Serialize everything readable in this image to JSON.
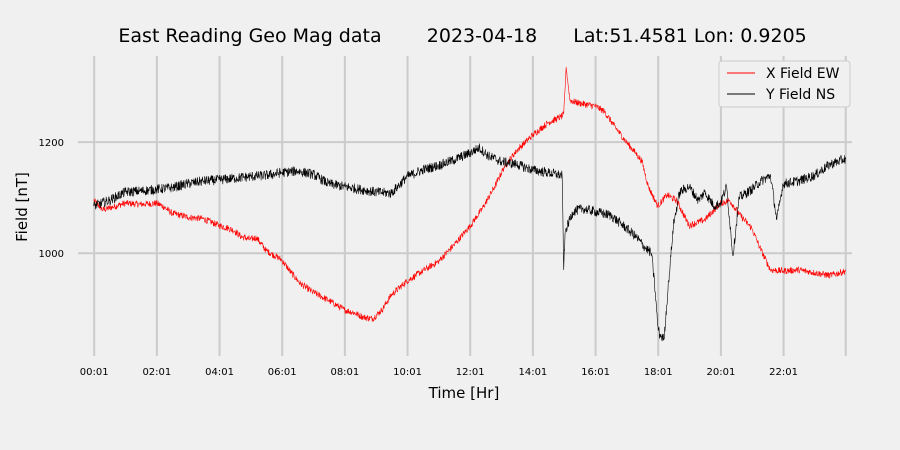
{
  "chart_data": {
    "type": "line",
    "title_parts": {
      "station": "East Reading Geo Mag data",
      "date": "2023-04-18",
      "location": "Lat:51.4581  Lon: 0.9205"
    },
    "xlabel": "Time  [Hr]",
    "ylabel": "Field  [nT]",
    "xlim": [
      -0.5,
      24.2
    ],
    "ylim": [
      815,
      1355
    ],
    "xticks": [
      {
        "value": 0.0167,
        "label": "00:01"
      },
      {
        "value": 2.0167,
        "label": "02:01"
      },
      {
        "value": 4.0167,
        "label": "04:01"
      },
      {
        "value": 6.0167,
        "label": "06:01"
      },
      {
        "value": 8.0167,
        "label": "08:01"
      },
      {
        "value": 10.0167,
        "label": "10:01"
      },
      {
        "value": 12.0167,
        "label": "12:01"
      },
      {
        "value": 14.0167,
        "label": "14:01"
      },
      {
        "value": 16.0167,
        "label": "16:01"
      },
      {
        "value": 18.0167,
        "label": "18:01"
      },
      {
        "value": 20.0167,
        "label": "20:01"
      },
      {
        "value": 22.0167,
        "label": "22:01"
      }
    ],
    "extra_x_gridlines": [
      24.0
    ],
    "yticks": [
      {
        "value": 1000,
        "label": "1000"
      },
      {
        "value": 1200,
        "label": "1200"
      }
    ],
    "grid": true,
    "legend_position": "top-right",
    "series": [
      {
        "name": "X Field EW",
        "color": "#ff0000",
        "points": [
          [
            0.0,
            1095
          ],
          [
            0.3,
            1078
          ],
          [
            0.6,
            1083
          ],
          [
            1.0,
            1090
          ],
          [
            1.5,
            1088
          ],
          [
            2.0,
            1090
          ],
          [
            2.2,
            1085
          ],
          [
            2.5,
            1072
          ],
          [
            3.0,
            1065
          ],
          [
            3.5,
            1062
          ],
          [
            4.0,
            1050
          ],
          [
            4.3,
            1045
          ],
          [
            4.5,
            1040
          ],
          [
            4.7,
            1030
          ],
          [
            5.0,
            1025
          ],
          [
            5.2,
            1028
          ],
          [
            5.5,
            1005
          ],
          [
            6.0,
            988
          ],
          [
            6.3,
            965
          ],
          [
            6.6,
            945
          ],
          [
            7.0,
            930
          ],
          [
            7.5,
            915
          ],
          [
            8.0,
            898
          ],
          [
            8.3,
            893
          ],
          [
            8.6,
            885
          ],
          [
            8.9,
            882
          ],
          [
            9.2,
            898
          ],
          [
            9.5,
            925
          ],
          [
            10.0,
            950
          ],
          [
            10.5,
            968
          ],
          [
            11.0,
            985
          ],
          [
            11.5,
            1015
          ],
          [
            12.0,
            1048
          ],
          [
            12.4,
            1080
          ],
          [
            12.8,
            1120
          ],
          [
            13.1,
            1155
          ],
          [
            13.5,
            1185
          ],
          [
            14.0,
            1212
          ],
          [
            14.5,
            1235
          ],
          [
            14.9,
            1245
          ],
          [
            15.0,
            1250
          ],
          [
            15.08,
            1335
          ],
          [
            15.2,
            1275
          ],
          [
            15.5,
            1270
          ],
          [
            16.0,
            1265
          ],
          [
            16.3,
            1255
          ],
          [
            16.6,
            1230
          ],
          [
            17.0,
            1200
          ],
          [
            17.3,
            1180
          ],
          [
            17.5,
            1165
          ],
          [
            17.7,
            1120
          ],
          [
            18.0,
            1085
          ],
          [
            18.3,
            1105
          ],
          [
            18.6,
            1095
          ],
          [
            19.0,
            1050
          ],
          [
            19.5,
            1060
          ],
          [
            20.0,
            1090
          ],
          [
            20.3,
            1095
          ],
          [
            20.6,
            1070
          ],
          [
            21.0,
            1045
          ],
          [
            21.3,
            1005
          ],
          [
            21.6,
            970
          ],
          [
            22.0,
            968
          ],
          [
            22.5,
            970
          ],
          [
            23.0,
            965
          ],
          [
            23.5,
            960
          ],
          [
            24.0,
            968
          ]
        ]
      },
      {
        "name": "Y Field NS",
        "color": "#000000",
        "points": [
          [
            0.0,
            1085
          ],
          [
            0.5,
            1095
          ],
          [
            1.0,
            1110
          ],
          [
            1.5,
            1112
          ],
          [
            2.0,
            1115
          ],
          [
            2.5,
            1118
          ],
          [
            3.0,
            1125
          ],
          [
            3.5,
            1130
          ],
          [
            4.0,
            1132
          ],
          [
            4.5,
            1135
          ],
          [
            5.0,
            1138
          ],
          [
            5.5,
            1140
          ],
          [
            6.0,
            1145
          ],
          [
            6.5,
            1148
          ],
          [
            7.0,
            1142
          ],
          [
            7.5,
            1125
          ],
          [
            8.0,
            1120
          ],
          [
            8.5,
            1115
          ],
          [
            9.0,
            1110
          ],
          [
            9.5,
            1108
          ],
          [
            10.0,
            1138
          ],
          [
            10.5,
            1150
          ],
          [
            11.0,
            1158
          ],
          [
            11.5,
            1168
          ],
          [
            12.0,
            1180
          ],
          [
            12.3,
            1190
          ],
          [
            12.6,
            1175
          ],
          [
            13.0,
            1165
          ],
          [
            13.5,
            1160
          ],
          [
            14.0,
            1150
          ],
          [
            14.5,
            1145
          ],
          [
            14.95,
            1140
          ],
          [
            15.0,
            970
          ],
          [
            15.05,
            1040
          ],
          [
            15.3,
            1075
          ],
          [
            15.6,
            1080
          ],
          [
            16.0,
            1075
          ],
          [
            16.5,
            1068
          ],
          [
            17.0,
            1045
          ],
          [
            17.3,
            1030
          ],
          [
            17.6,
            1010
          ],
          [
            17.8,
            1000
          ],
          [
            17.9,
            945
          ],
          [
            18.0,
            870
          ],
          [
            18.05,
            855
          ],
          [
            18.2,
            845
          ],
          [
            18.35,
            950
          ],
          [
            18.5,
            1050
          ],
          [
            18.7,
            1110
          ],
          [
            19.0,
            1120
          ],
          [
            19.3,
            1095
          ],
          [
            19.5,
            1110
          ],
          [
            19.8,
            1085
          ],
          [
            20.0,
            1090
          ],
          [
            20.2,
            1120
          ],
          [
            20.4,
            995
          ],
          [
            20.6,
            1100
          ],
          [
            21.0,
            1115
          ],
          [
            21.3,
            1130
          ],
          [
            21.6,
            1140
          ],
          [
            21.8,
            1060
          ],
          [
            22.0,
            1125
          ],
          [
            22.5,
            1130
          ],
          [
            23.0,
            1140
          ],
          [
            23.5,
            1160
          ],
          [
            24.0,
            1170
          ]
        ]
      }
    ]
  }
}
